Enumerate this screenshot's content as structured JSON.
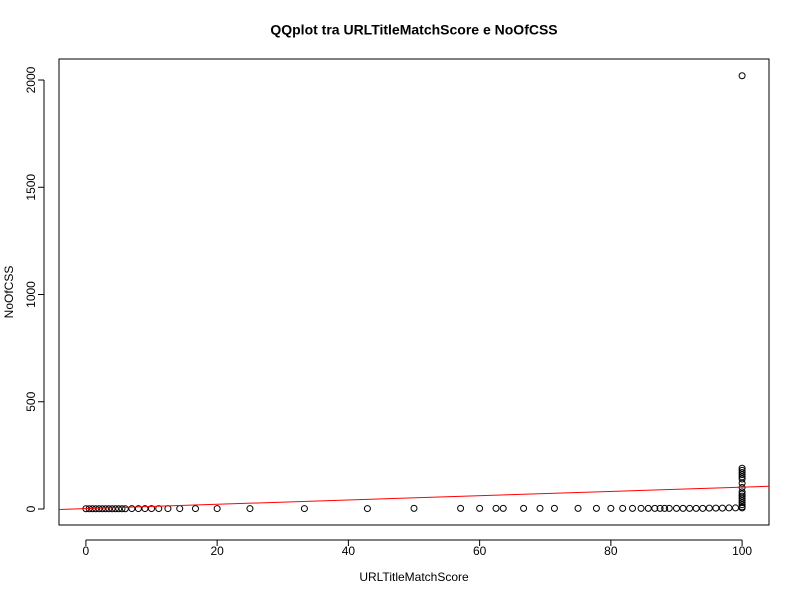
{
  "chart_data": {
    "type": "scatter",
    "title": "QQplot tra URLTitleMatchScore e NoOfCSS",
    "x_label": "URLTitleMatchScore",
    "y_label": "NoOfCSS",
    "x": [
      0,
      0.5,
      1,
      1.5,
      2,
      2.5,
      3,
      3.5,
      4,
      4.5,
      5,
      5.5,
      6,
      7,
      8,
      9,
      10,
      11.1,
      12.5,
      14.3,
      16.7,
      20,
      25,
      33.3,
      42.9,
      50,
      57.1,
      60,
      62.5,
      63.6,
      66.7,
      69.2,
      71.4,
      75,
      77.8,
      80,
      81.8,
      83.3,
      84.6,
      85.7,
      86.7,
      87.5,
      88.2,
      88.9,
      90,
      91,
      92,
      93,
      94,
      95,
      96,
      97,
      98,
      99,
      100,
      100,
      100,
      100,
      100,
      100,
      100,
      100,
      100,
      100,
      100,
      100,
      100,
      100,
      100,
      100,
      100,
      100
    ],
    "y": [
      1,
      1,
      1,
      1,
      1,
      1,
      1,
      1,
      1,
      1,
      1,
      1,
      1,
      2,
      2,
      2,
      2,
      2,
      2,
      2,
      2,
      2,
      2,
      2,
      2,
      3,
      3,
      3,
      3,
      3,
      3,
      3,
      3,
      3,
      3,
      3,
      3,
      3,
      3,
      3,
      3,
      3,
      3,
      3,
      3,
      3,
      3,
      3,
      3,
      4,
      4,
      4,
      5,
      5,
      5,
      10,
      20,
      30,
      40,
      50,
      60,
      70,
      80,
      100,
      120,
      140,
      150,
      160,
      170,
      180,
      190,
      2020
    ],
    "color": "#000000",
    "reference_line": {
      "intercept": 2,
      "slope": 1,
      "color": "#ff0000"
    },
    "xlim": [
      -4.1,
      104.1
    ],
    "ylim": [
      -74.6,
      2098
    ],
    "xticks": [
      0,
      20,
      40,
      60,
      80,
      100
    ],
    "yticks": [
      0,
      500,
      1000,
      1500,
      2000
    ]
  }
}
